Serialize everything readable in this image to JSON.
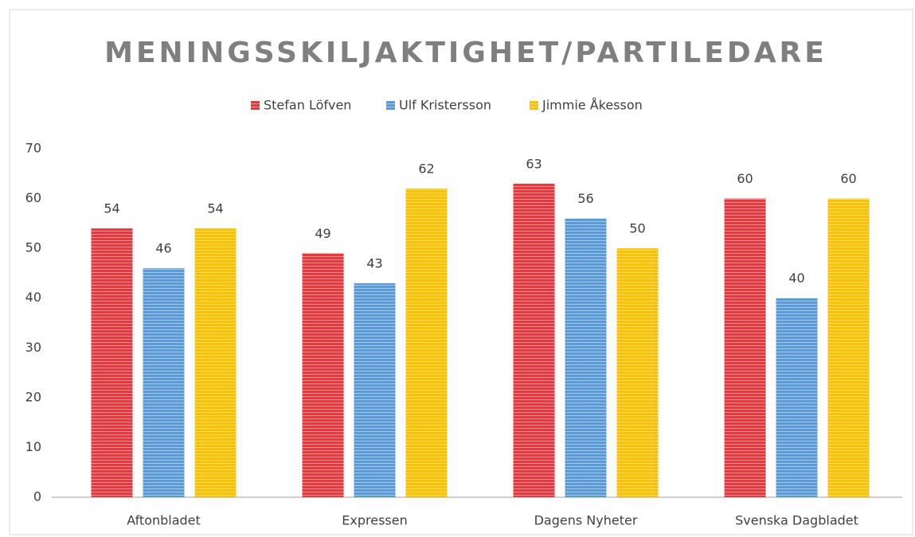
{
  "chart_data": {
    "type": "bar",
    "title": "MENINGSSKILJAKTIGHET/PARTILEDARE",
    "categories": [
      "Aftonbladet",
      "Expressen",
      "Dagens Nyheter",
      "Svenska Dagbladet"
    ],
    "series": [
      {
        "name": "Stefan Löfven",
        "color": "#e8383d",
        "values": [
          54,
          49,
          63,
          60
        ]
      },
      {
        "name": "Ulf Kristersson",
        "color": "#5b9bd5",
        "values": [
          46,
          43,
          56,
          40
        ]
      },
      {
        "name": "Jimmie Åkesson",
        "color": "#ffc000",
        "values": [
          54,
          62,
          50,
          60
        ]
      }
    ],
    "ylim": [
      0,
      70
    ],
    "yticks": [
      0,
      10,
      20,
      30,
      40,
      50,
      60,
      70
    ],
    "grid": false,
    "legend": "top"
  }
}
